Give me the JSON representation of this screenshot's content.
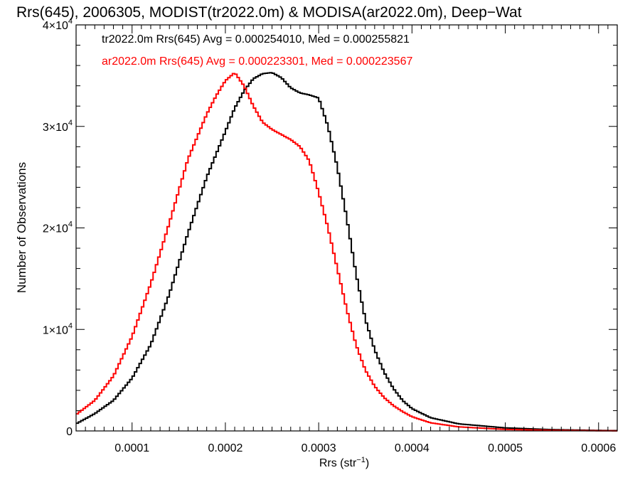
{
  "chart_data": {
    "type": "line",
    "step": true,
    "title": "Rrs(645), 2006305, MODIST(tr2022.0m) & MODISA(ar2022.0m), Deep−Wat",
    "xlabel_base": "Rrs (str",
    "xlabel_sup": "−1",
    "xlabel_end": ")",
    "ylabel": "Number of Observations",
    "xlim": [
      4e-05,
      0.00062
    ],
    "ylim": [
      0,
      40000
    ],
    "xticks": [
      0.0001,
      0.0002,
      0.0003,
      0.0004,
      0.0005,
      0.0006
    ],
    "xtick_labels": [
      "0.0001",
      "0.0002",
      "0.0003",
      "0.0004",
      "0.0005",
      "0.0006"
    ],
    "yticks": [
      {
        "value": 0,
        "base": "0",
        "sup": ""
      },
      {
        "value": 10000,
        "base": "1×10",
        "sup": "4"
      },
      {
        "value": 20000,
        "base": "2×10",
        "sup": "4"
      },
      {
        "value": 30000,
        "base": "3×10",
        "sup": "4"
      },
      {
        "value": 40000,
        "base": "4×10",
        "sup": "4"
      }
    ],
    "grid": false,
    "legend_position": "top-left",
    "series": [
      {
        "name": "tr2022.0m Rrs(645) Avg = 0.000254010, Med = 0.000255821",
        "color": "#000000",
        "x": [
          4e-05,
          6e-05,
          8e-05,
          0.0001,
          0.00012,
          0.00014,
          0.00016,
          0.00018,
          0.0002,
          0.00021,
          0.00022,
          0.00023,
          0.00024,
          0.00025,
          0.00026,
          0.00027,
          0.00028,
          0.00029,
          0.0003,
          0.00031,
          0.00032,
          0.00033,
          0.00034,
          0.00035,
          0.00036,
          0.00037,
          0.00038,
          0.00039,
          0.0004,
          0.00042,
          0.00045,
          0.0005,
          0.00055,
          0.0006,
          0.00062
        ],
        "y": [
          700,
          1700,
          3000,
          5200,
          8500,
          13500,
          19500,
          25000,
          29500,
          31800,
          33500,
          34700,
          35200,
          35300,
          34800,
          33800,
          33300,
          33100,
          32800,
          30000,
          26000,
          21000,
          15500,
          11000,
          8000,
          5800,
          4200,
          3000,
          2200,
          1300,
          700,
          300,
          130,
          50,
          30
        ]
      },
      {
        "name": "ar2022.0m Rrs(645) Avg = 0.000223301, Med = 0.000223567",
        "color": "#ff0000",
        "x": [
          4e-05,
          6e-05,
          8e-05,
          0.0001,
          0.00012,
          0.00014,
          0.00016,
          0.00018,
          0.00019,
          0.0002,
          0.00021,
          0.00022,
          0.00023,
          0.00024,
          0.00025,
          0.00026,
          0.00027,
          0.00028,
          0.00029,
          0.0003,
          0.00031,
          0.00032,
          0.00033,
          0.00034,
          0.00035,
          0.00036,
          0.00037,
          0.00038,
          0.00039,
          0.0004,
          0.00042,
          0.00045,
          0.0005,
          0.00055,
          0.0006,
          0.00062
        ],
        "y": [
          1600,
          3000,
          5400,
          9300,
          14500,
          20500,
          26800,
          31200,
          33000,
          34500,
          35300,
          34000,
          32000,
          30400,
          29700,
          29200,
          28700,
          28000,
          26600,
          23500,
          20000,
          16000,
          12000,
          8500,
          6000,
          4400,
          3300,
          2500,
          1900,
          1400,
          800,
          400,
          150,
          60,
          20,
          10
        ]
      }
    ]
  }
}
